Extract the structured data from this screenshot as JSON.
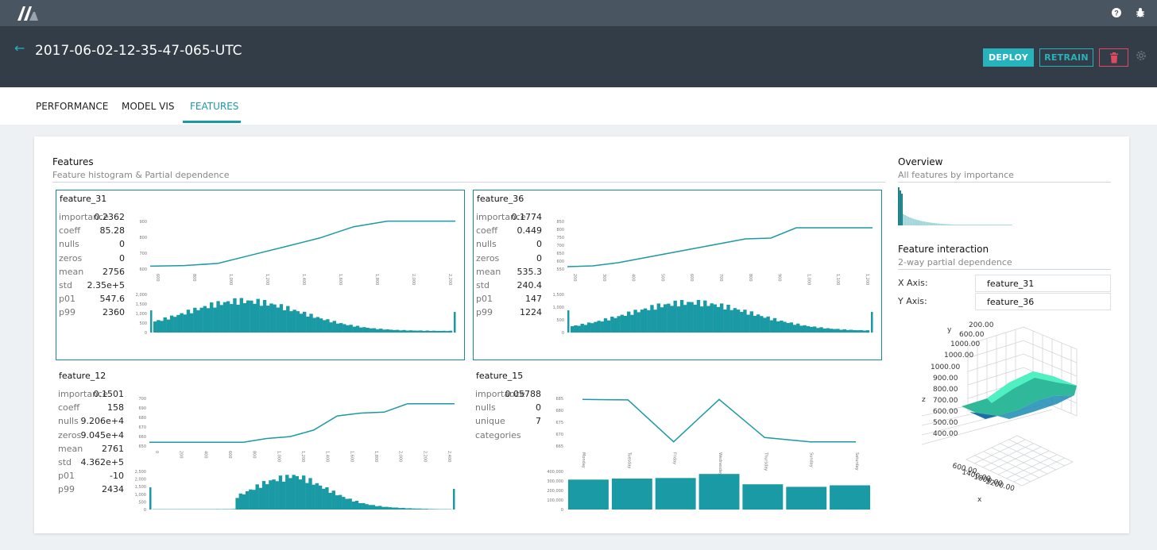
{
  "header": {
    "title": "2017-06-02-12-35-47-065-UTC",
    "back_icon": "arrow-left-icon"
  },
  "toolbar": {
    "deploy_label": "DEPLOY",
    "retrain_label": "RETRAIN",
    "delete_icon": "trash-icon",
    "settings_icon": "gear-icon"
  },
  "topbar": {
    "icons": [
      "help-icon",
      "bug-icon"
    ]
  },
  "tabs": [
    "PERFORMANCE",
    "MODEL VIS",
    "FEATURES"
  ],
  "active_tab": "FEATURES",
  "colors": {
    "accent": "#1a9aa4",
    "danger": "#e04a62",
    "header_bg": "#333d48"
  },
  "features_section": {
    "title": "Features",
    "subtitle": "Feature histogram & Partial dependence"
  },
  "overview": {
    "title": "Overview",
    "subtitle": "All features by importance"
  },
  "interaction": {
    "title": "Feature interaction",
    "subtitle": "2-way partial dependence",
    "x_axis_label": "X Axis:",
    "x_axis_value": "feature_31",
    "y_axis_label": "Y Axis:",
    "y_axis_value": "feature_36"
  },
  "features": [
    {
      "name": "feature_31",
      "selected": true,
      "stats": [
        [
          "importance",
          "0.2362"
        ],
        [
          "coeff",
          "85.28"
        ],
        [
          "nulls",
          "0"
        ],
        [
          "zeros",
          "0"
        ],
        [
          "mean",
          "2756"
        ],
        [
          "std",
          "2.35e+5"
        ],
        [
          "p01",
          "547.6"
        ],
        [
          "p99",
          "2360"
        ]
      ],
      "pd_y_ticks": [
        "900",
        "800",
        "700",
        "600"
      ],
      "x_ticks": [
        "600",
        "800",
        "1,000",
        "1,200",
        "1,400",
        "1,600",
        "1,800",
        "2,000",
        "2,200"
      ],
      "hist_y_ticks": [
        "2,000",
        "1,500",
        "1,000",
        "500",
        "0"
      ]
    },
    {
      "name": "feature_36",
      "selected": true,
      "stats": [
        [
          "importance",
          "0.1774"
        ],
        [
          "coeff",
          "0.449"
        ],
        [
          "nulls",
          "0"
        ],
        [
          "zeros",
          "0"
        ],
        [
          "mean",
          "535.3"
        ],
        [
          "std",
          "240.4"
        ],
        [
          "p01",
          "147"
        ],
        [
          "p99",
          "1224"
        ]
      ],
      "pd_y_ticks": [
        "850",
        "800",
        "750",
        "700",
        "650",
        "600",
        "550"
      ],
      "x_ticks": [
        "200",
        "300",
        "400",
        "500",
        "600",
        "700",
        "800",
        "900",
        "1,000",
        "1,100",
        "1,200"
      ],
      "hist_y_ticks": [
        "1,500",
        "1,000",
        "500",
        "0"
      ]
    },
    {
      "name": "feature_12",
      "selected": false,
      "stats": [
        [
          "importance",
          "0.1501"
        ],
        [
          "coeff",
          "158"
        ],
        [
          "nulls",
          "9.206e+4"
        ],
        [
          "zeros",
          "9.045e+4"
        ],
        [
          "mean",
          "2761"
        ],
        [
          "std",
          "4.362e+5"
        ],
        [
          "p01",
          "-10"
        ],
        [
          "p99",
          "2434"
        ]
      ],
      "pd_y_ticks": [
        "700",
        "690",
        "680",
        "670",
        "660",
        "650"
      ],
      "x_ticks": [
        "0",
        "200",
        "400",
        "600",
        "800",
        "1,000",
        "1,200",
        "1,400",
        "1,600",
        "1,800",
        "2,000",
        "2,200",
        "2,400"
      ],
      "hist_y_ticks": [
        "2,500",
        "2,000",
        "1,500",
        "1,000",
        "500",
        "0"
      ]
    },
    {
      "name": "feature_15",
      "selected": false,
      "stats": [
        [
          "importance",
          "0.05788"
        ],
        [
          "nulls",
          "0"
        ],
        [
          "unique",
          "7"
        ],
        [
          "categories",
          ""
        ]
      ],
      "pd_y_ticks": [
        "685",
        "680",
        "675",
        "670",
        "665"
      ],
      "categories": [
        "Monday",
        "Tuesday",
        "Friday",
        "Wednesday",
        "Thursday",
        "Sunday",
        "Saturday"
      ],
      "hist_y_ticks": [
        "400,000",
        "300,000",
        "200,000",
        "100,000",
        "0"
      ]
    }
  ],
  "chart_data": [
    {
      "type": "line",
      "title": "feature_31",
      "x": [
        600,
        800,
        1000,
        1200,
        1400,
        1600,
        1800,
        2000,
        2200,
        2400
      ],
      "y": [
        580,
        585,
        600,
        660,
        720,
        780,
        860,
        900,
        900,
        900
      ],
      "ylim": [
        560,
        920
      ]
    },
    {
      "type": "line",
      "title": "feature_36",
      "x": [
        150,
        200,
        300,
        400,
        500,
        600,
        700,
        800,
        900,
        1000,
        1100,
        1200,
        1250
      ],
      "y": [
        555,
        560,
        580,
        610,
        640,
        670,
        700,
        730,
        735,
        800,
        800,
        800,
        800
      ],
      "ylim": [
        540,
        860
      ]
    },
    {
      "type": "line",
      "title": "feature_12",
      "x": [
        0,
        200,
        400,
        600,
        800,
        1000,
        1200,
        1400,
        1600,
        1800,
        2000,
        2200,
        2400,
        2600
      ],
      "y": [
        652,
        652,
        652,
        652,
        652,
        656,
        658,
        665,
        680,
        683,
        684,
        693,
        693,
        693
      ],
      "ylim": [
        648,
        702
      ]
    },
    {
      "type": "line",
      "title": "feature_15",
      "categories": [
        "Monday",
        "Tuesday",
        "Friday",
        "Wednesday",
        "Thursday",
        "Sunday",
        "Saturday"
      ],
      "y": [
        685,
        684.8,
        665,
        685,
        667,
        665,
        665
      ],
      "ylim": [
        663,
        687
      ]
    },
    {
      "type": "bar",
      "title": "feature_15",
      "categories": [
        "Monday",
        "Tuesday",
        "Friday",
        "Wednesday",
        "Thursday",
        "Sunday",
        "Saturday"
      ],
      "values": [
        290000,
        300000,
        305000,
        345000,
        245000,
        220000,
        235000
      ],
      "ylim": [
        0,
        400000
      ]
    }
  ]
}
